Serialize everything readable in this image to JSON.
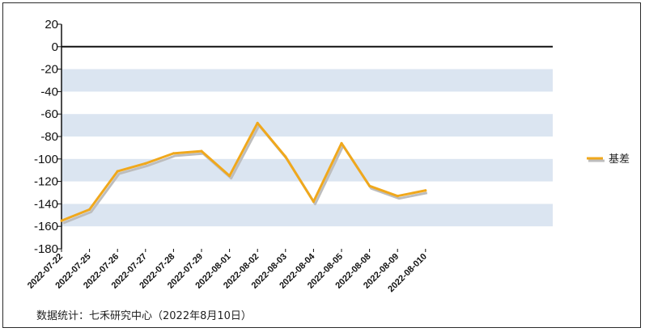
{
  "chart_data": {
    "type": "line",
    "title": "",
    "xlabel": "",
    "ylabel": "",
    "ylim": [
      -180,
      20
    ],
    "yticks": [
      20,
      0,
      -20,
      -40,
      -60,
      -80,
      -100,
      -120,
      -140,
      -160,
      -180
    ],
    "legend_position": "right",
    "categories": [
      "2022-07-22",
      "2022-07-25",
      "2022-07-26",
      "2022-07-27",
      "2022-07-28",
      "2022-07-29",
      "2022-08-01",
      "2022-08-02",
      "2022-08-03",
      "2022-08-04",
      "2022-08-05",
      "2022-08-08",
      "2022-08-09",
      "2022-08-010"
    ],
    "series": [
      {
        "name": "基差",
        "color": "#f0a81c",
        "values": [
          -155,
          -145,
          -111,
          -104,
          -95,
          -93,
          -115,
          -68,
          -98,
          -138,
          -86,
          -124,
          -133,
          -128
        ]
      }
    ],
    "colors": {
      "band": "#dbe5f1",
      "line": "#f0a81c",
      "shadow": "#bdbdbd",
      "axis": "#111111"
    }
  },
  "footer": {
    "source": "数据统计：七禾研究中心（2022年8月10日）"
  }
}
